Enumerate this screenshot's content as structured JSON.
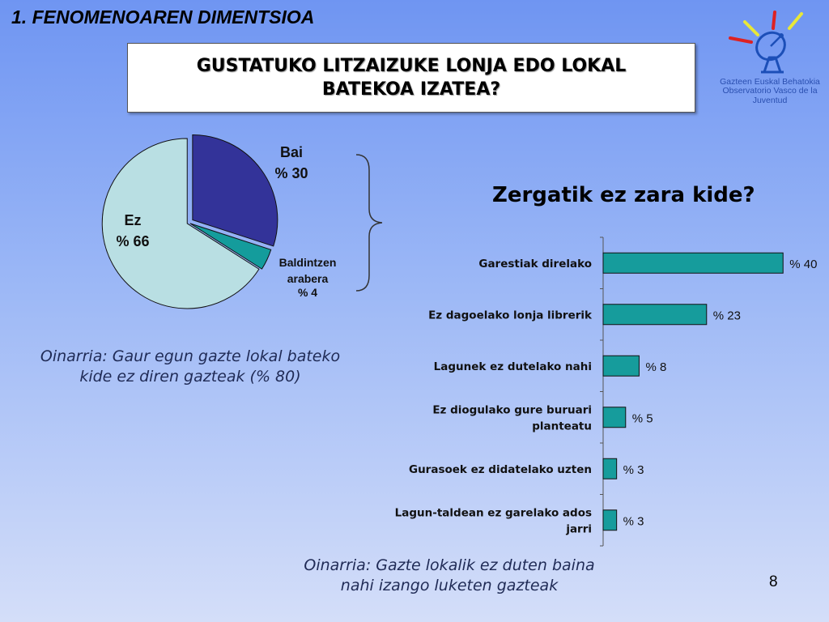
{
  "slide": {
    "title": "1. FENOMENOAREN DIMENTSIOA",
    "question": "GUSTATUKO LITZAIZUKE LONJA EDO LOKAL BATEKOA IZATEA?",
    "page_number": "8"
  },
  "logo": {
    "line1": "Gazteen Euskal Behatokia",
    "line2": "Observatorio Vasco de la Juventud",
    "icon": "satellite-dish-icon"
  },
  "notes": {
    "pie": "Oinarria: Gaur egun gazte lokal bateko kide ez diren gazteak (% 80)",
    "bars": "Oinarria: Gazte lokalik ez duten baina nahi izango luketen gazteak"
  },
  "chart_data": [
    {
      "type": "pie",
      "slices": [
        {
          "label": "Bai",
          "value": 30,
          "value_label": "% 30",
          "color": "#333399"
        },
        {
          "label": "Baldintzen arabera",
          "value": 4,
          "value_label": "% 4",
          "color": "#149c9c"
        },
        {
          "label": "Ez",
          "value": 66,
          "value_label": "% 66",
          "color": "#b9dfe3"
        }
      ],
      "exploded": "Bai"
    },
    {
      "type": "bar",
      "orientation": "horizontal",
      "title": "Zergatik ez zara kide?",
      "categories": [
        "Garestiak direlako",
        "Ez dagoelako lonja librerik",
        "Lagunek ez dutelako nahi",
        "Ez diogulako gure buruari planteatu",
        "Gurasoek ez didatelako uzten",
        "Lagun-taldean ez garelako ados jarri"
      ],
      "values": [
        40,
        23,
        8,
        5,
        3,
        3
      ],
      "value_labels": [
        "% 40",
        "% 23",
        "% 8",
        "% 5",
        "% 3",
        "% 3"
      ],
      "xlim": [
        0,
        45
      ],
      "color": "#169c9c"
    }
  ]
}
